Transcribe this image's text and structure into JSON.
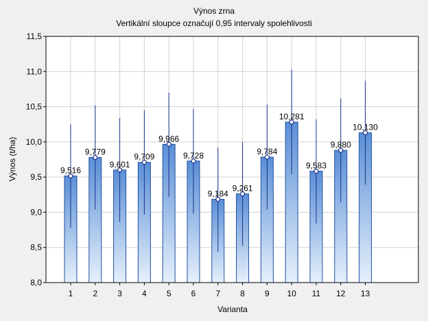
{
  "chart_data": {
    "type": "bar",
    "title": "Výnos zrna",
    "subtitle": "Vertikální sloupce označují 0,95 intervaly spolehlivosti",
    "xlabel": "Varianta",
    "ylabel": "Výnos (t/ha)",
    "ylim": [
      8.0,
      11.5
    ],
    "ytick_step": 0.5,
    "grid": true,
    "categories": [
      "1",
      "2",
      "3",
      "4",
      "5",
      "6",
      "7",
      "8",
      "9",
      "10",
      "11",
      "12",
      "13"
    ],
    "values": [
      9.516,
      9.779,
      9.601,
      9.709,
      9.966,
      9.728,
      9.184,
      9.261,
      9.784,
      10.281,
      9.583,
      9.88,
      10.13
    ],
    "value_labels": [
      "9,516",
      "9,779",
      "9,601",
      "9,709",
      "9,966",
      "9,728",
      "9,184",
      "9,261",
      "9,784",
      "10,281",
      "9,583",
      "9,880",
      "10,130"
    ],
    "ci_lower": [
      8.78,
      9.04,
      8.86,
      8.97,
      9.22,
      8.98,
      8.44,
      8.52,
      9.04,
      9.54,
      8.84,
      9.14,
      9.39
    ],
    "ci_upper": [
      10.25,
      10.52,
      10.34,
      10.45,
      10.7,
      10.47,
      9.92,
      10.0,
      10.53,
      11.03,
      10.32,
      10.62,
      10.87
    ],
    "colors": {
      "bar_top": "#5a8fd6",
      "bar_bottom": "#e6f0fb",
      "bar_edge": "#1f4fa0",
      "errorbar": "#1a2f8a",
      "marker": "#1a2f8a",
      "grid": "#d0d0d0",
      "plot_bg": "#ffffff",
      "page_bg": "#f0f0f0"
    }
  }
}
